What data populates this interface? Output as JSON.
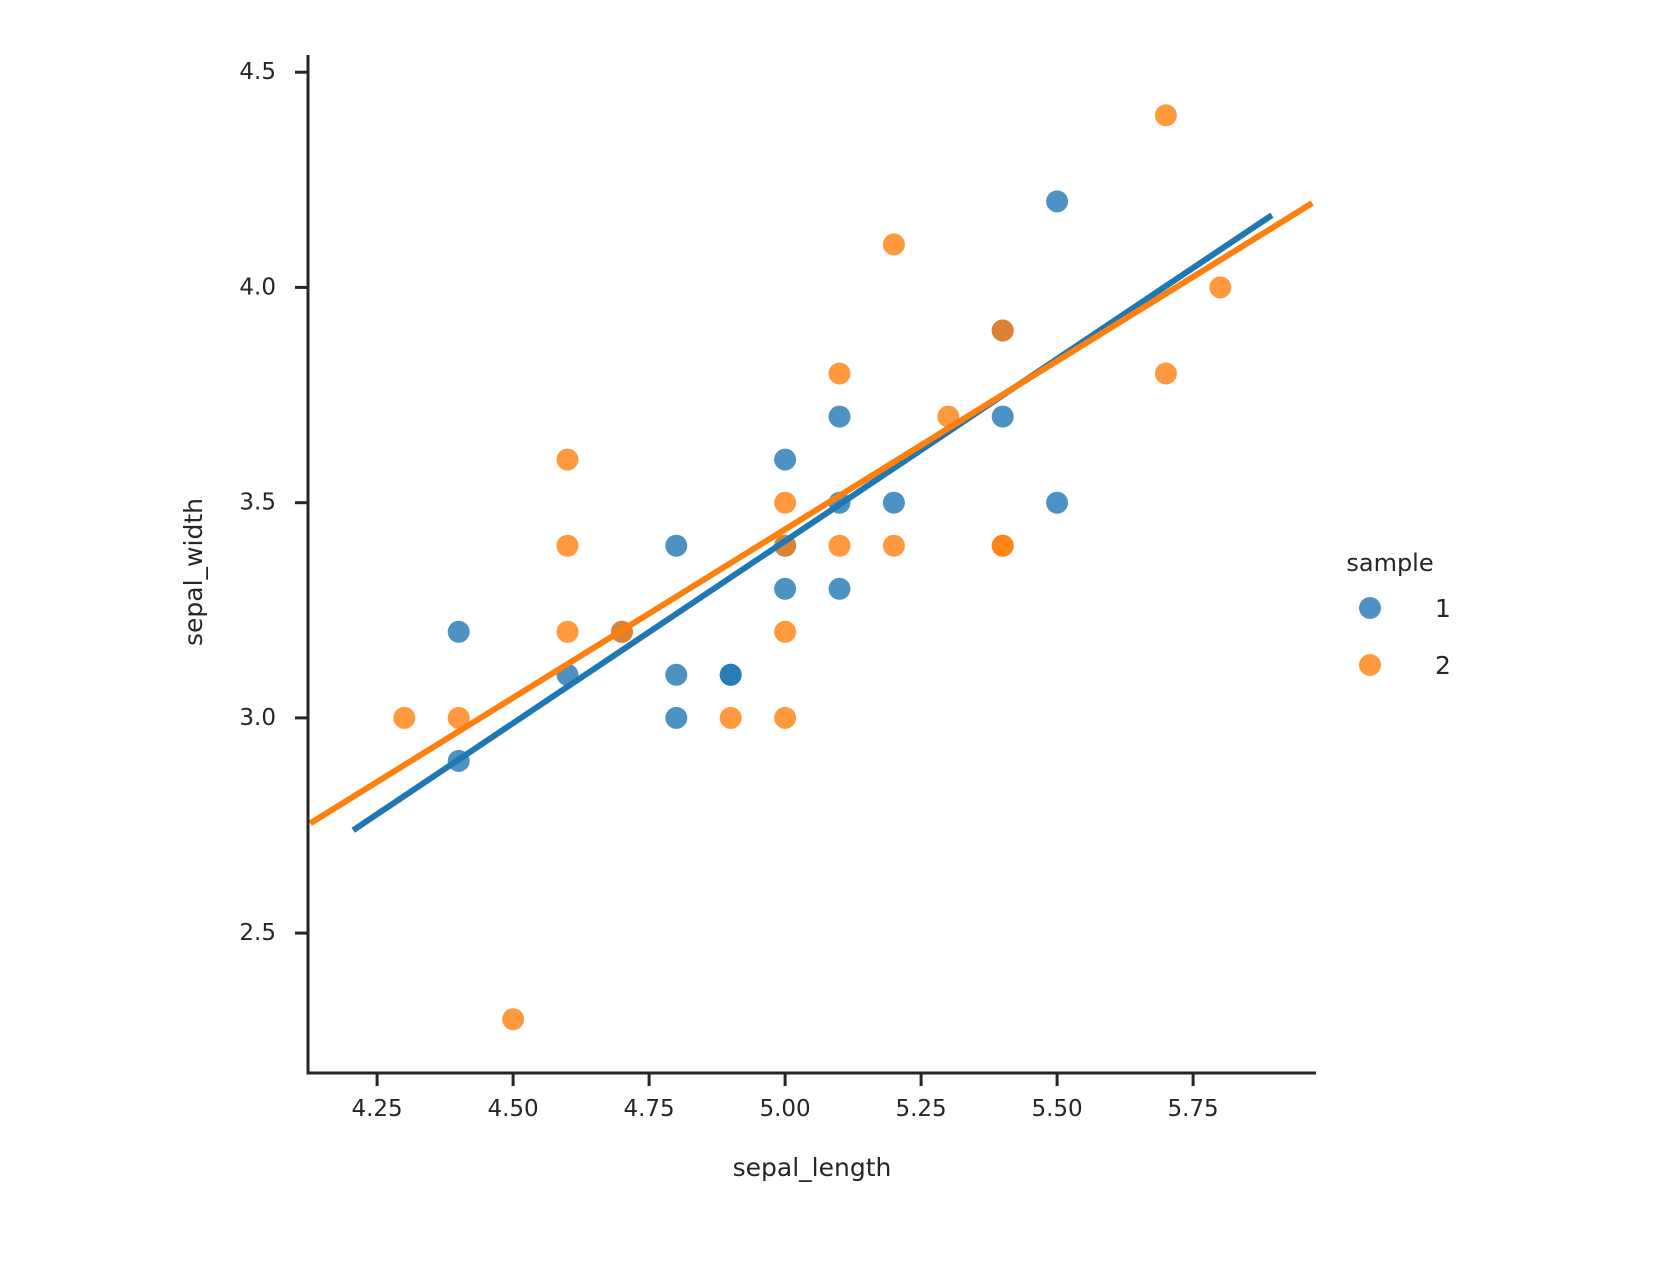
{
  "figure": {
    "background": "#ffffff",
    "text_color": "#262626",
    "spine_color": "#262626"
  },
  "legend": {
    "title": "sample",
    "position": "right",
    "items": [
      {
        "label": "1",
        "color": "#1f77b4"
      },
      {
        "label": "2",
        "color": "#ff7f0e"
      }
    ]
  },
  "chart_data": {
    "type": "scatter",
    "title": "",
    "xlabel": "sepal_length",
    "ylabel": "sepal_width",
    "xlim": [
      4.123,
      5.976
    ],
    "ylim": [
      2.175,
      4.54
    ],
    "xticks": [
      4.25,
      4.5,
      4.75,
      5.0,
      5.25,
      5.5,
      5.75
    ],
    "xtick_labels": [
      "4.25",
      "4.50",
      "4.75",
      "5.00",
      "5.25",
      "5.50",
      "5.75"
    ],
    "yticks": [
      2.5,
      3.0,
      3.5,
      4.0,
      4.5
    ],
    "ytick_labels": [
      "2.5",
      "3.0",
      "3.5",
      "4.0",
      "4.5"
    ],
    "grid": false,
    "legend_position": "right",
    "marker_alpha": 0.8,
    "series": [
      {
        "name": "1",
        "color": "#1f77b4",
        "points": [
          [
            4.4,
            3.2
          ],
          [
            4.4,
            2.9
          ],
          [
            4.6,
            3.1
          ],
          [
            4.7,
            3.2
          ],
          [
            4.8,
            3.4
          ],
          [
            4.8,
            3.1
          ],
          [
            4.8,
            3.0
          ],
          [
            4.9,
            3.1
          ],
          [
            4.9,
            3.1
          ],
          [
            5.0,
            3.6
          ],
          [
            5.0,
            3.4
          ],
          [
            5.0,
            3.3
          ],
          [
            5.1,
            3.7
          ],
          [
            5.1,
            3.5
          ],
          [
            5.1,
            3.3
          ],
          [
            5.2,
            3.5
          ],
          [
            5.4,
            3.9
          ],
          [
            5.4,
            3.7
          ],
          [
            5.5,
            4.2
          ],
          [
            5.5,
            3.5
          ]
        ],
        "regression_line": {
          "x": [
            4.206,
            5.895
          ],
          "y": [
            2.739,
            4.168
          ]
        }
      },
      {
        "name": "2",
        "color": "#ff7f0e",
        "points": [
          [
            4.3,
            3.0
          ],
          [
            4.4,
            3.0
          ],
          [
            4.5,
            2.3
          ],
          [
            4.6,
            3.6
          ],
          [
            4.6,
            3.4
          ],
          [
            4.6,
            3.2
          ],
          [
            4.7,
            3.2
          ],
          [
            4.9,
            3.0
          ],
          [
            5.0,
            3.5
          ],
          [
            5.0,
            3.4
          ],
          [
            5.0,
            3.2
          ],
          [
            5.0,
            3.0
          ],
          [
            5.1,
            3.8
          ],
          [
            5.1,
            3.4
          ],
          [
            5.2,
            4.1
          ],
          [
            5.2,
            3.4
          ],
          [
            5.3,
            3.7
          ],
          [
            5.4,
            3.9
          ],
          [
            5.4,
            3.4
          ],
          [
            5.4,
            3.4
          ],
          [
            5.7,
            4.4
          ],
          [
            5.7,
            3.8
          ],
          [
            5.8,
            4.0
          ]
        ],
        "regression_line": {
          "x": [
            4.127,
            5.969
          ],
          "y": [
            2.755,
            4.196
          ]
        }
      }
    ]
  }
}
